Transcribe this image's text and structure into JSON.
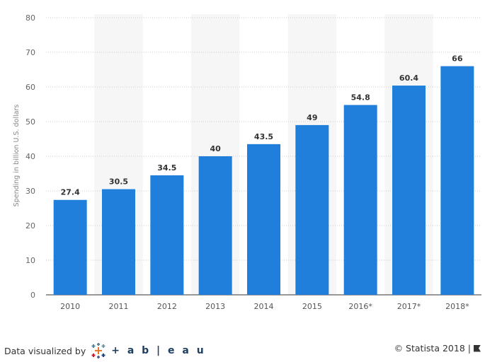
{
  "chart_data": {
    "type": "bar",
    "title": "",
    "xlabel": "",
    "ylabel": "Spending in billion U.S. dollars",
    "categories": [
      "2010",
      "2011",
      "2012",
      "2013",
      "2014",
      "2015",
      "2016*",
      "2017*",
      "2018*"
    ],
    "values": [
      27.4,
      30.5,
      34.5,
      40,
      43.5,
      49,
      54.8,
      60.4,
      66
    ],
    "value_labels": [
      "27.4",
      "30.5",
      "34.5",
      "40",
      "43.5",
      "49",
      "54.8",
      "60.4",
      "66"
    ],
    "ylim": [
      0,
      80
    ],
    "yticks": [
      0,
      10,
      20,
      30,
      40,
      50,
      60,
      70,
      80
    ],
    "grid": true,
    "bar_color": "#1f7fdb"
  },
  "footer": {
    "data_visualized_by": "Data visualized by",
    "tableau_logo": "+ a b | e a u",
    "copyright": "© Statista 2018"
  }
}
